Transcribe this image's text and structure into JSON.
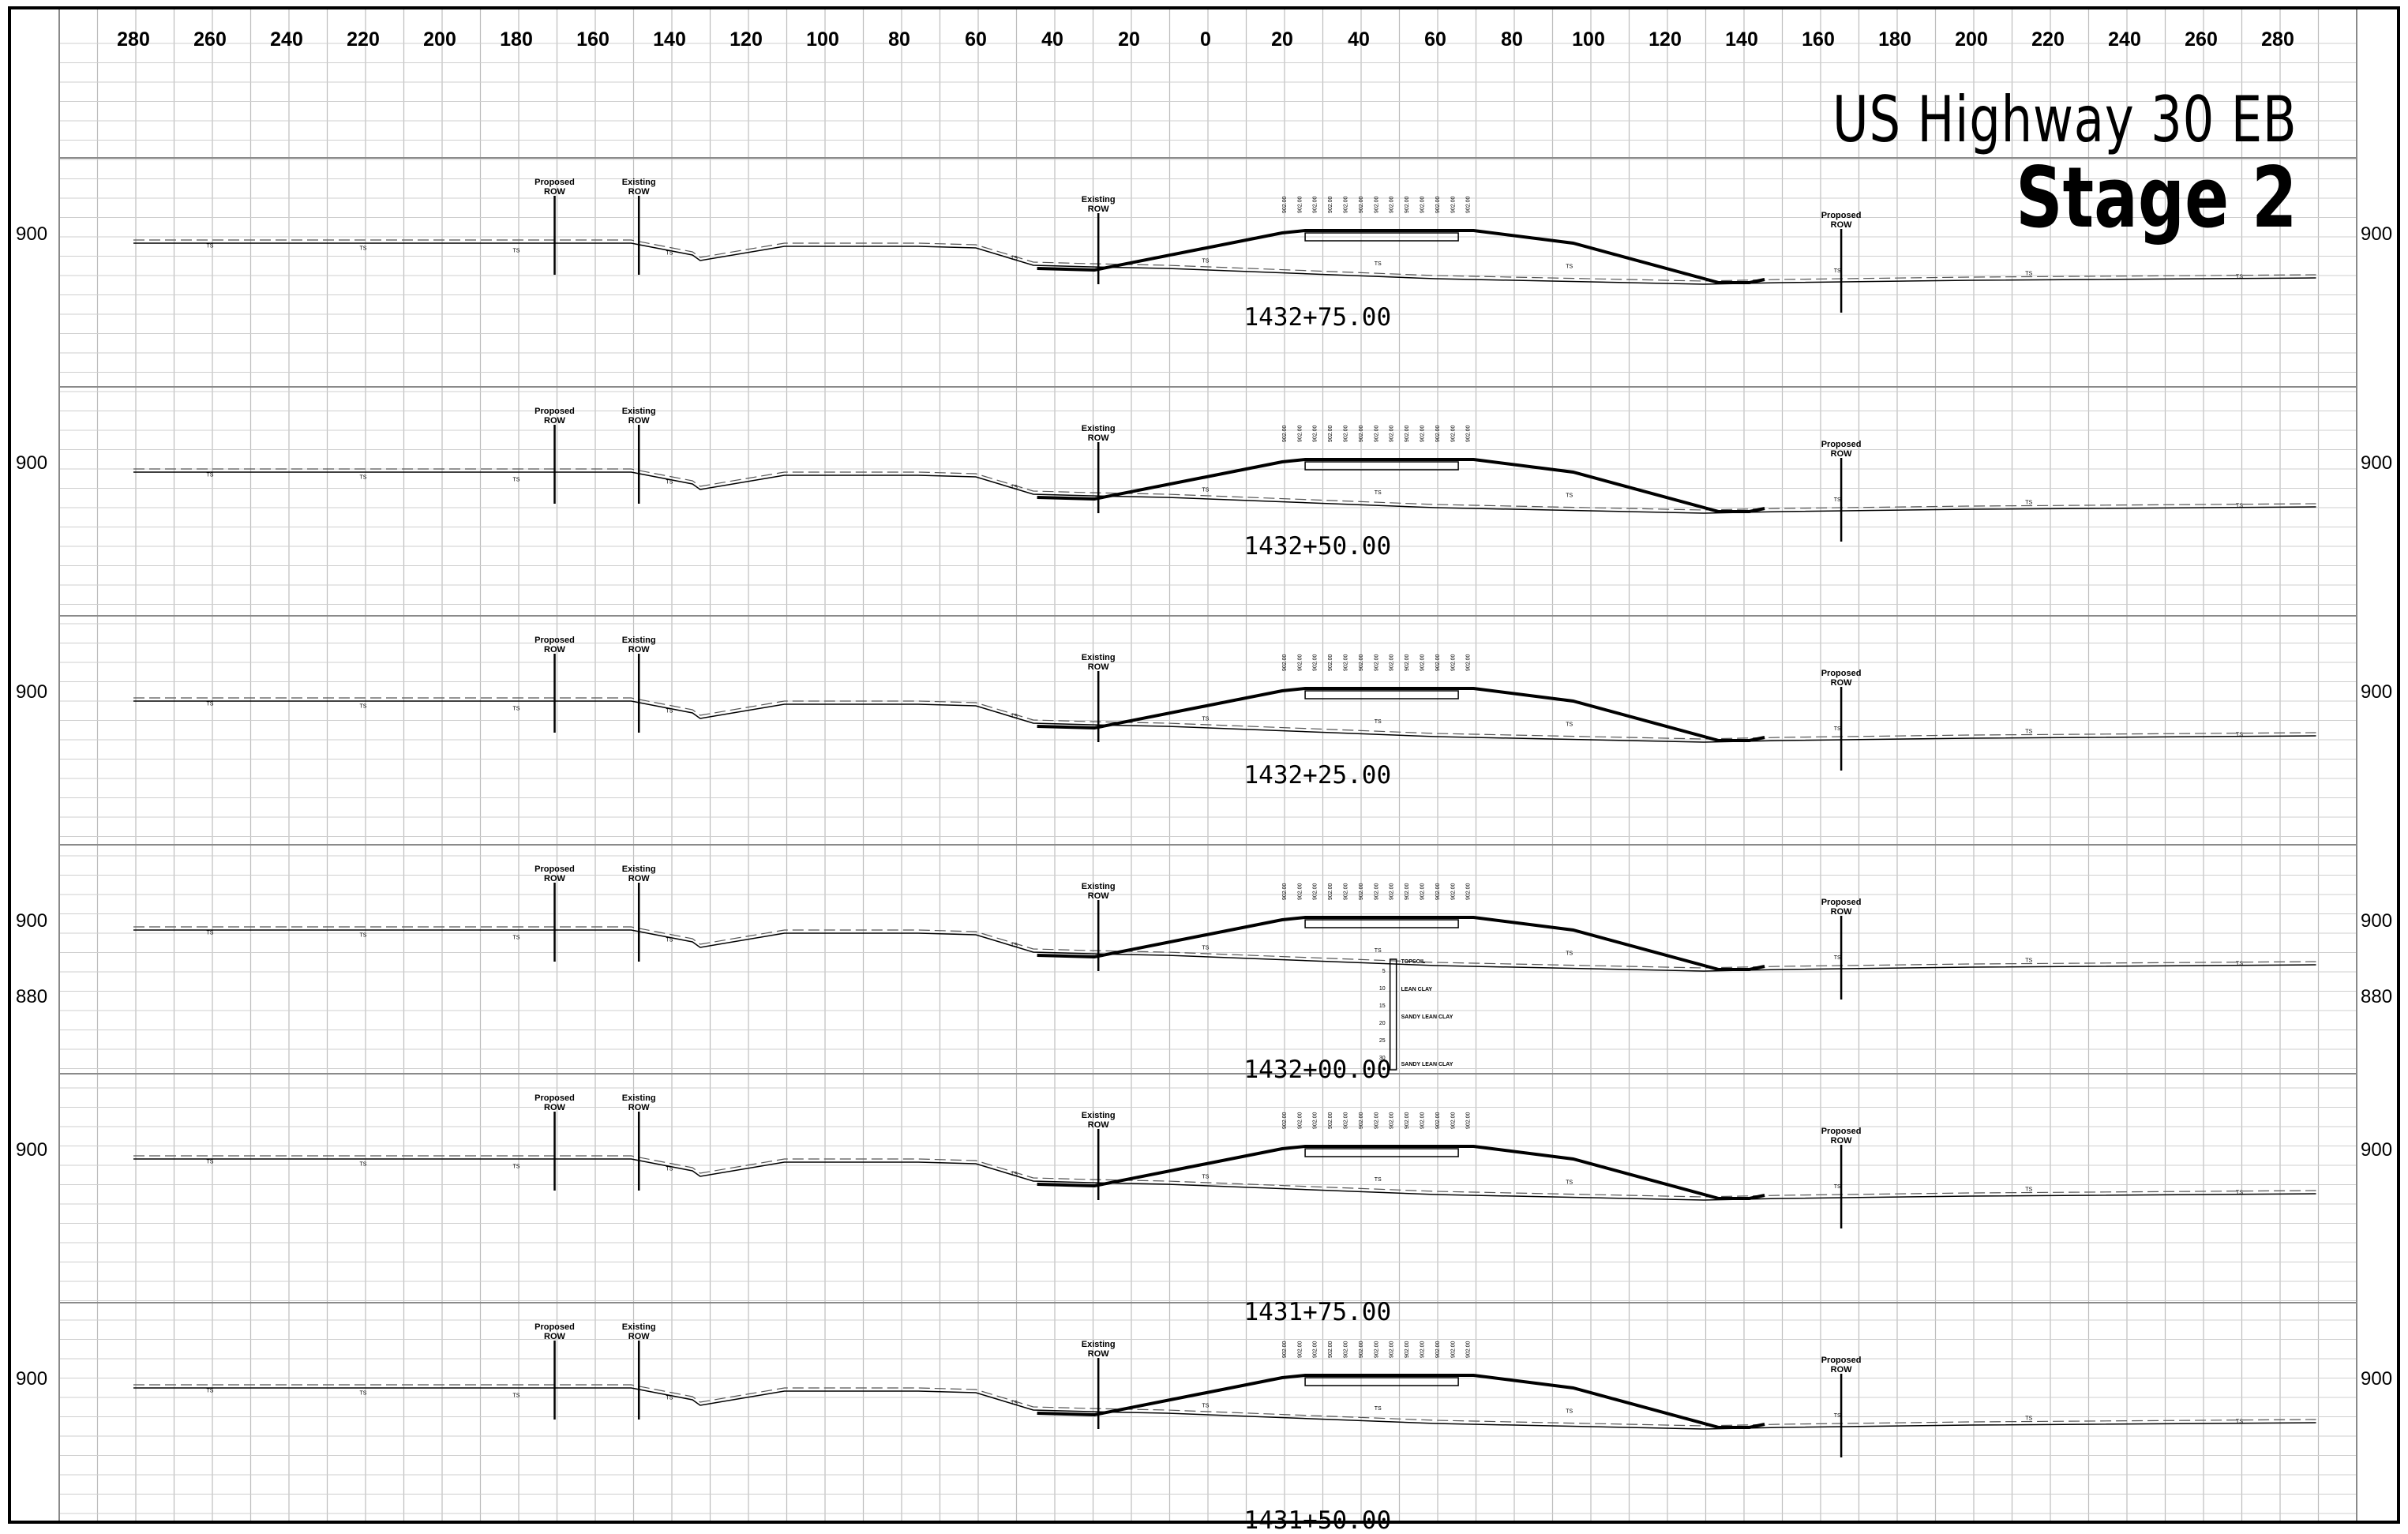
{
  "title": {
    "line1": "US Highway 30 EB",
    "line2": "Stage 2"
  },
  "offset_scale": [
    "280",
    "260",
    "240",
    "220",
    "200",
    "180",
    "160",
    "140",
    "120",
    "100",
    "80",
    "60",
    "40",
    "20",
    "0",
    "20",
    "40",
    "60",
    "80",
    "100",
    "120",
    "140",
    "160",
    "180",
    "200",
    "220",
    "240",
    "260",
    "280"
  ],
  "elevation_label": "900",
  "extra_elevation_label": "880",
  "labels": {
    "proposed_row": [
      "Proposed",
      "ROW"
    ],
    "existing_row": [
      "Existing",
      "ROW"
    ],
    "ts": "TS"
  },
  "sections": [
    {
      "station": "1432+75.00"
    },
    {
      "station": "1432+50.00"
    },
    {
      "station": "1432+25.00"
    },
    {
      "station": "1432+00.00"
    },
    {
      "station": "1431+75.00"
    },
    {
      "station": "1431+50.00"
    }
  ],
  "soil_boring": {
    "layers": [
      "TOPSOIL",
      "LEAN CLAY",
      "SANDY LEAN CLAY",
      "SANDY LEAN CLAY"
    ],
    "depths": [
      "5",
      "10",
      "15",
      "20",
      "25",
      "30"
    ]
  }
}
